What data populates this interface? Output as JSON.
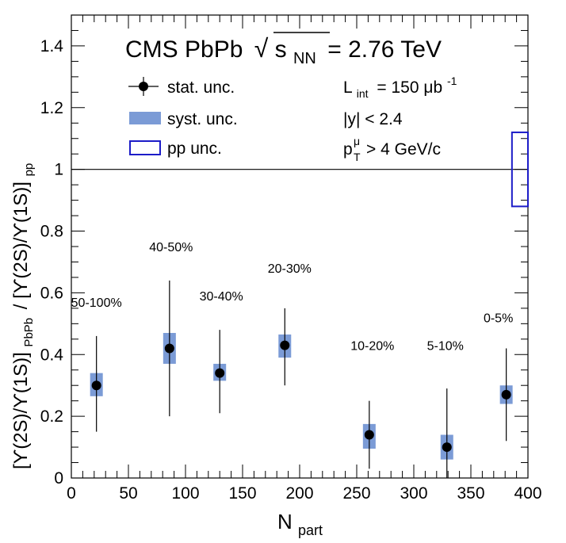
{
  "chart_data": {
    "type": "scatter",
    "title": {
      "main": "CMS PbPb",
      "sqrt_symbol": "√",
      "s": "s",
      "nn": "NN",
      "energy": "= 2.76 TeV"
    },
    "xlabel": {
      "main": "N",
      "sub": "part"
    },
    "ylabel": "[ϒ(2S)/ϒ(1S)]PbPb / [ϒ(2S)/ϒ(1S)]pp",
    "ylabel_parts": {
      "lhs": "[ϒ(2S)/ϒ(1S)]",
      "lhs_sub": "PbPb",
      "rhs": "/ [ϒ(2S)/ϒ(1S)]",
      "rhs_sub": "pp"
    },
    "xlim": [
      0,
      400
    ],
    "ylim": [
      0,
      1.5
    ],
    "x_ticks": [
      0,
      50,
      100,
      150,
      200,
      250,
      300,
      350,
      400
    ],
    "x_tick_labels": [
      "0",
      "50",
      "100",
      "150",
      "200",
      "250",
      "300",
      "350",
      "400"
    ],
    "y_ticks": [
      0,
      0.2,
      0.4,
      0.6,
      0.8,
      1.0,
      1.2,
      1.4
    ],
    "y_tick_labels": [
      "0",
      "0.2",
      "0.4",
      "0.6",
      "0.8",
      "1",
      "1.2",
      "1.4"
    ],
    "reference_line": 1.0,
    "points": [
      {
        "x": 22,
        "y": 0.3,
        "stat_lo": 0.15,
        "stat_hi": 0.46,
        "syst_lo": 0.265,
        "syst_hi": 0.34,
        "label": "50-100%"
      },
      {
        "x": 86,
        "y": 0.42,
        "stat_lo": 0.2,
        "stat_hi": 0.64,
        "syst_lo": 0.37,
        "syst_hi": 0.47,
        "label": "40-50%"
      },
      {
        "x": 130,
        "y": 0.34,
        "stat_lo": 0.21,
        "stat_hi": 0.48,
        "syst_lo": 0.315,
        "syst_hi": 0.37,
        "label": "30-40%"
      },
      {
        "x": 187,
        "y": 0.43,
        "stat_lo": 0.3,
        "stat_hi": 0.55,
        "syst_lo": 0.39,
        "syst_hi": 0.465,
        "label": "20-30%"
      },
      {
        "x": 261,
        "y": 0.14,
        "stat_lo": 0.03,
        "stat_hi": 0.25,
        "syst_lo": 0.095,
        "syst_hi": 0.175,
        "label": "10-20%"
      },
      {
        "x": 329,
        "y": 0.1,
        "stat_lo": 0.0,
        "stat_hi": 0.29,
        "syst_lo": 0.06,
        "syst_hi": 0.14,
        "label": "5-10%"
      },
      {
        "x": 381,
        "y": 0.27,
        "stat_lo": 0.12,
        "stat_hi": 0.42,
        "syst_lo": 0.24,
        "syst_hi": 0.3,
        "label": "0-5%"
      }
    ],
    "pp_uncertainty": {
      "y_lo": 0.88,
      "y_hi": 1.12,
      "x_lo": 386,
      "x_hi": 400
    },
    "legend": {
      "stat": "stat. unc.",
      "syst": "syst. unc.",
      "pp": "pp unc."
    },
    "annotations": {
      "lumi": {
        "main": "L",
        "sub": "int",
        "value": "= 150 μb",
        "sup": "-1"
      },
      "rapidity": "|y| < 2.4",
      "pt_cut": {
        "main": "p",
        "sup": "μ",
        "sub": "T",
        "value": "> 4 GeV/c"
      }
    },
    "colors": {
      "syst_fill": "#7b9bd6",
      "pp_box": "#1c1cc8",
      "marker": "#000000",
      "axis": "#000000"
    }
  }
}
